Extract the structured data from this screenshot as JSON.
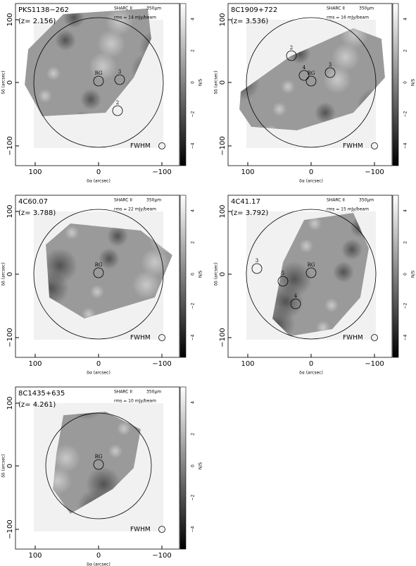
{
  "axes": {
    "x_label": "δα (arcsec)",
    "y_label": "δδ (arcsec)",
    "colorbar_label": "N/S",
    "xticks": [
      "100",
      "0",
      "−100"
    ],
    "yticks": [
      "100",
      "0",
      "−100"
    ],
    "colorbar_ticks": [
      "4",
      "2",
      "0",
      "−2",
      "−4"
    ],
    "beam_label": "FWHM"
  },
  "panels": [
    {
      "name": "PKS1138−262",
      "redshift": "(z= 2.156)",
      "instrument": "SHARC II",
      "wavelength": "350μm",
      "rms": "rms = 14 mJy/beam",
      "sources": [
        "RG",
        "3",
        "2"
      ]
    },
    {
      "name": "8C1909+722",
      "redshift": "(z= 3.536)",
      "instrument": "SHARC II",
      "wavelength": "350μm",
      "rms": "rms = 16 mJy/beam",
      "sources": [
        "2",
        "4",
        "RG",
        "3"
      ]
    },
    {
      "name": "4C60.07",
      "redshift": "(z= 3.788)",
      "instrument": "SHARC II",
      "wavelength": "350μm",
      "rms": "rms = 22 mJy/beam",
      "sources": [
        "RG"
      ]
    },
    {
      "name": "4C41.17",
      "redshift": "(z= 3.792)",
      "instrument": "SHARC II",
      "wavelength": "350μm",
      "rms": "rms = 15 mJy/beam",
      "sources": [
        "3",
        "5",
        "RG",
        "4"
      ]
    },
    {
      "name": "8C1435+635",
      "redshift": "(z= 4.261)",
      "instrument": "SHARC II",
      "wavelength": "350μm",
      "rms": "rms = 10 mJy/beam",
      "sources": [
        "RG"
      ]
    }
  ]
}
